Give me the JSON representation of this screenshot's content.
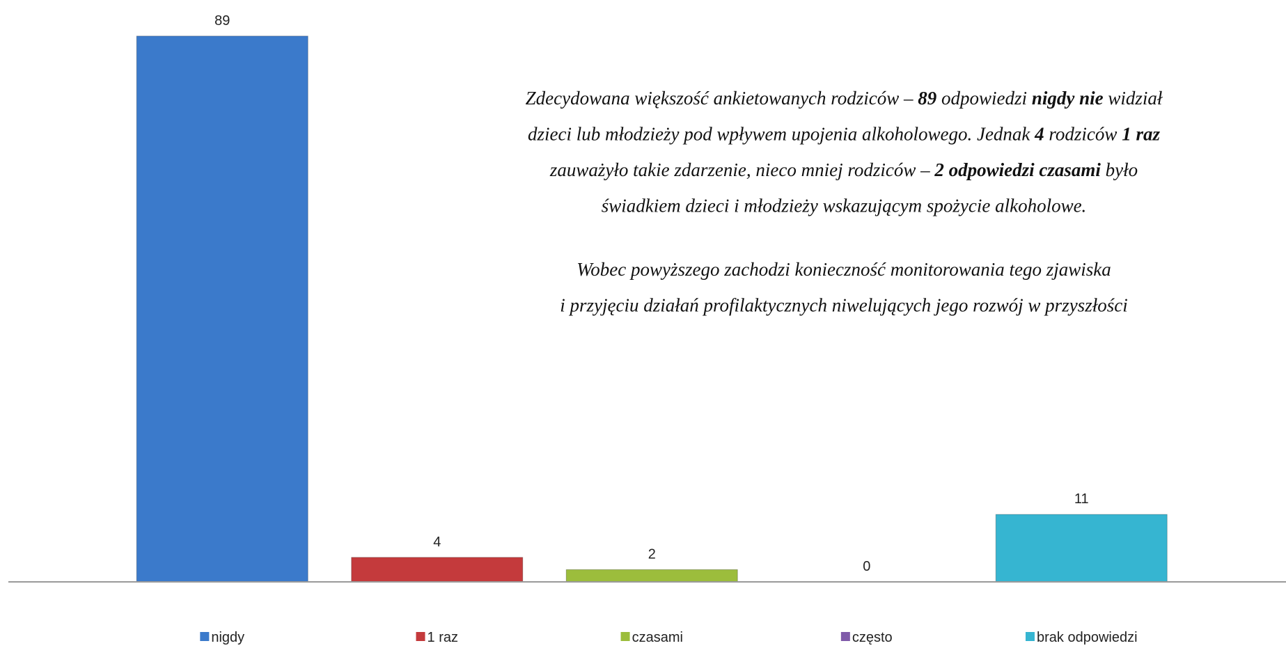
{
  "chart_data": {
    "type": "bar",
    "categories": [
      "nigdy",
      "1 raz",
      "czasami",
      "często",
      "brak odpowiedzi"
    ],
    "series": [
      {
        "values": [
          89,
          4,
          2,
          0,
          11
        ],
        "colors": [
          "#3b7acb",
          "#c43a3c",
          "#9cbd3c",
          "#7f5aa9",
          "#36b5d1"
        ]
      }
    ],
    "ylim": [
      0,
      90
    ],
    "legend": "bottom",
    "annotation": [
      [
        [
          {
            "text": "Zdecydowana większość ankietowanych rodziców – "
          },
          {
            "text": "89",
            "bold": true
          },
          {
            "text": " odpowiedzi "
          },
          {
            "text": "nigdy nie",
            "bold": true
          },
          {
            "text": " widział"
          }
        ],
        [
          {
            "text": "dzieci lub młodzieży pod wpływem upojenia alkoholowego. Jednak "
          },
          {
            "text": "4",
            "bold": true
          },
          {
            "text": " rodziców "
          },
          {
            "text": "1 raz",
            "bold": true
          }
        ],
        [
          {
            "text": "zauważyło takie zdarzenie, nieco mniej rodziców – "
          },
          {
            "text": "2 odpowiedzi czasami",
            "bold": true
          },
          {
            "text": " było"
          }
        ],
        [
          {
            "text": "świadkiem dzieci i młodzieży wskazującym spożycie alkoholowe."
          }
        ]
      ],
      [
        [
          {
            "text": "Wobec powyższego zachodzi konieczność monitorowania tego zjawiska"
          }
        ],
        [
          {
            "text": "i przyjęciu działań profilaktycznych niwelujących jego rozwój w przyszłości"
          }
        ]
      ]
    ]
  }
}
